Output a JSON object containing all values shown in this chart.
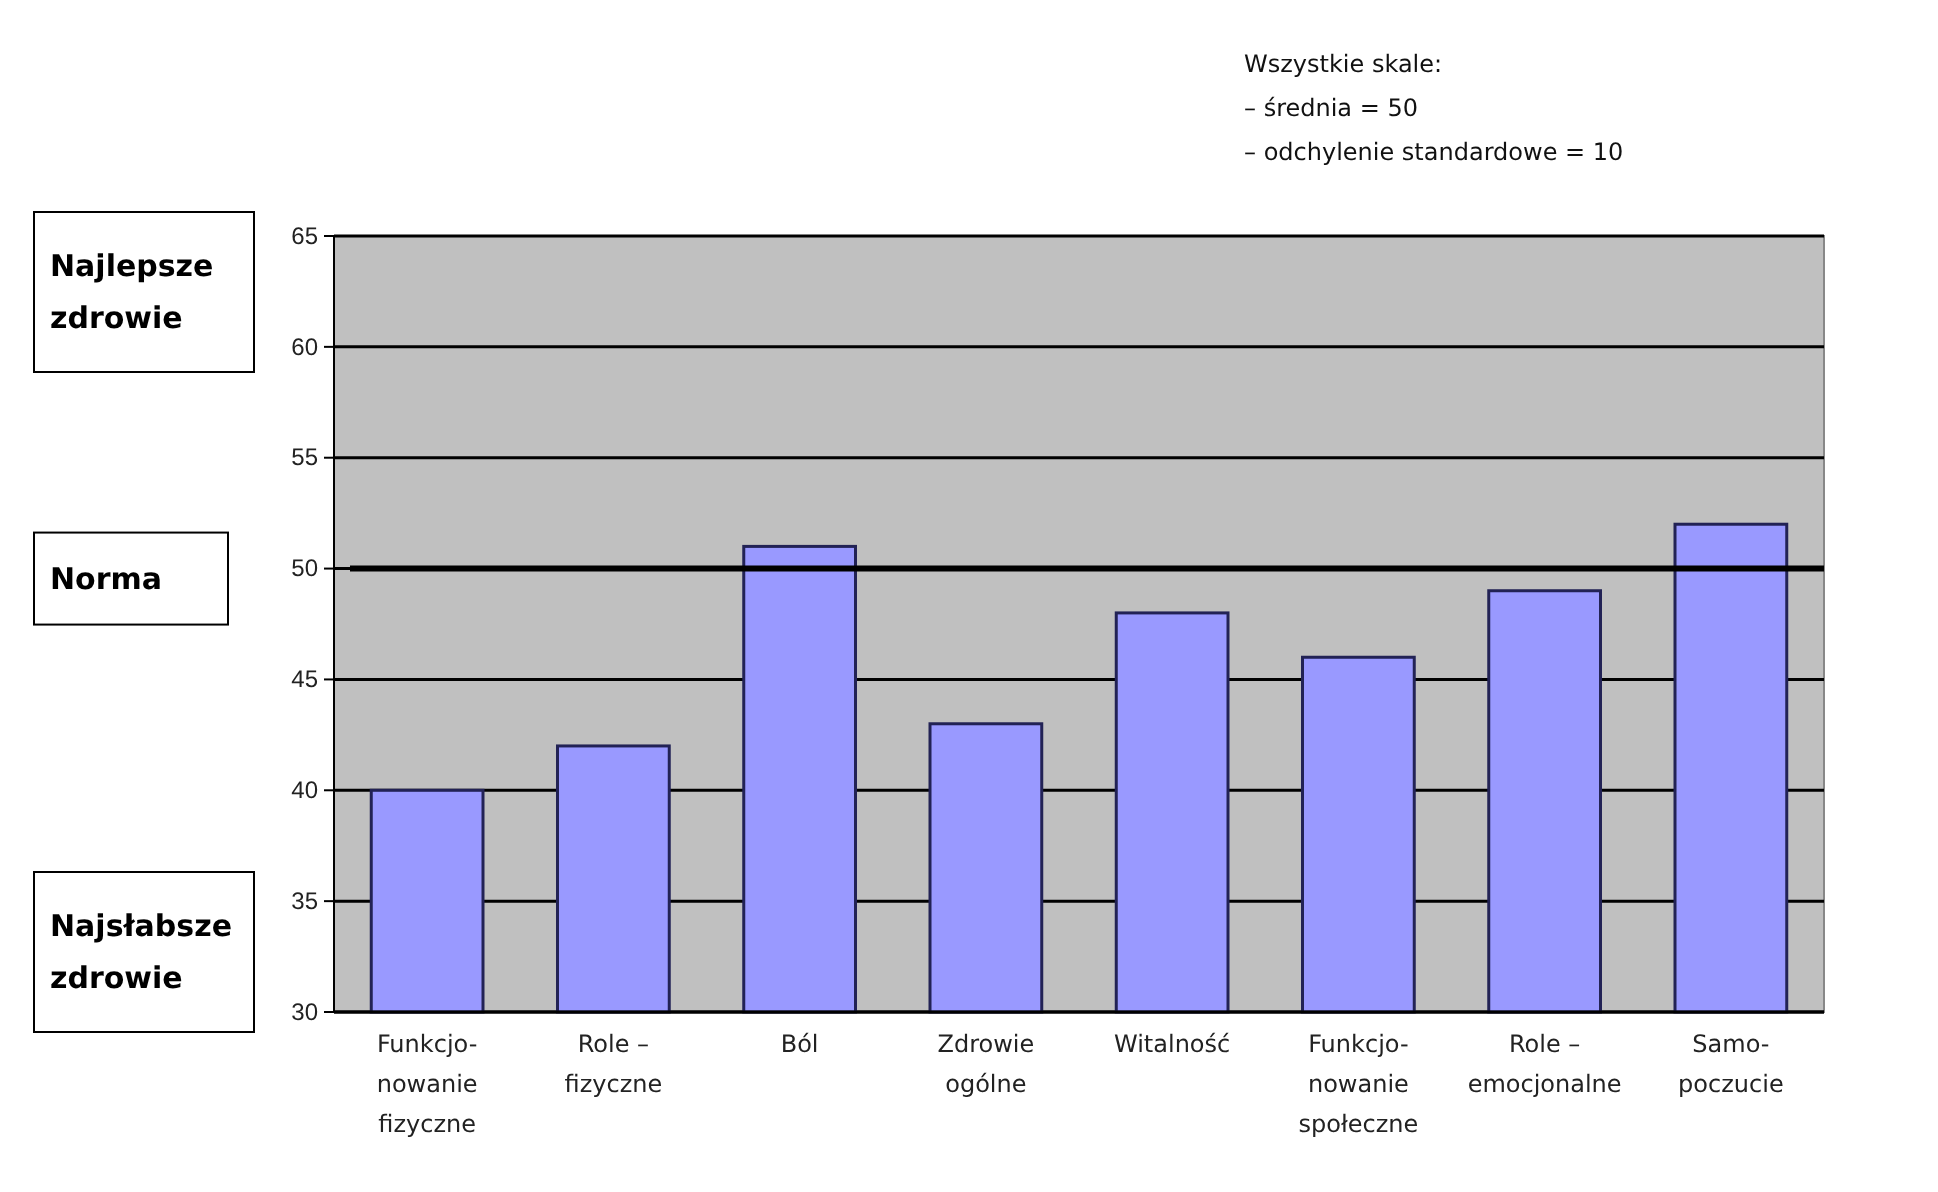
{
  "chart_data": {
    "type": "bar",
    "categories": [
      "Funkcjo-\nnowanie\nfizyczne",
      "Role –\nfizyczne",
      "Ból",
      "Zdrowie\nogólne",
      "Witalność",
      "Funkcjo-\nnowanie\nspołeczne",
      "Role –\nemocjonalne",
      "Samo-\npoczucie"
    ],
    "values": [
      40,
      42,
      51,
      43,
      48,
      46,
      49,
      52
    ],
    "color": "#9999ff",
    "ylim": [
      30,
      65
    ],
    "yticks": [
      30,
      35,
      40,
      45,
      50,
      55,
      60,
      65
    ],
    "grid": "y",
    "ref_lines": [
      {
        "axis": "y",
        "value": 50,
        "label": "Norma",
        "color": "#000000"
      }
    ],
    "annotations": [
      "Najlepsze\nzdrowie",
      "Najsłabsze\nzdrowie",
      "Wszystkie skale:\n– średnia = 50\n– odchylenie standardowe = 10"
    ]
  }
}
